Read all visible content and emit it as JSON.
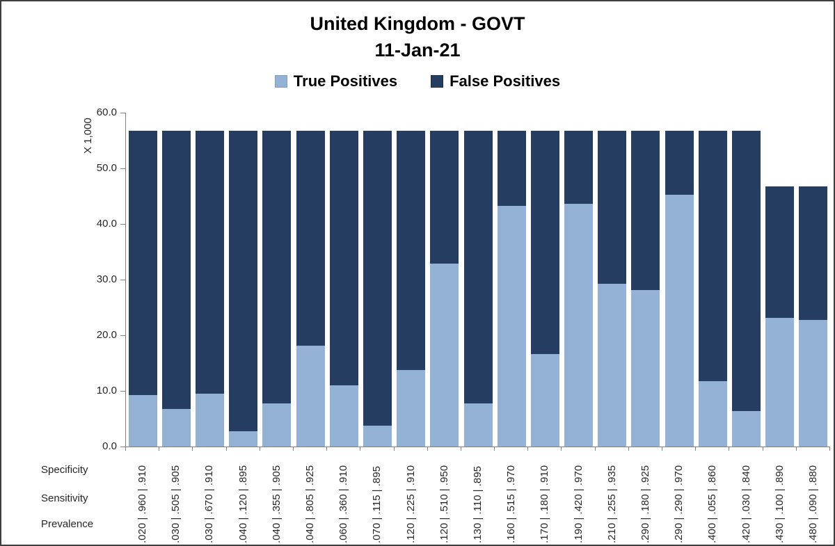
{
  "window": {
    "background": "#ffffff",
    "border_color": "#3f3f3f"
  },
  "chart_data": {
    "type": "bar",
    "stacked": true,
    "grid": false,
    "legend_position": "top",
    "title": "United Kingdom - GOVT",
    "subtitle": "11-Jan-21",
    "y_axis": {
      "unit_label": "X 1,000",
      "min": 0,
      "max": 60,
      "tick_step": 10,
      "tick_labels": [
        "0.0",
        "10.0",
        "20.0",
        "30.0",
        "40.0",
        "50.0",
        "60.0"
      ]
    },
    "x_axis": {
      "row_labels": [
        "Specificity",
        "Sensitivity",
        "Prevalence"
      ],
      "category_format": "Prevalence | Sensitivity | Specificity"
    },
    "categories": [
      ".020 | .960 | .910",
      ".030 | .505 | .905",
      ".030 | .670 | .910",
      ".040 | .120 | .895",
      ".040 | .355 | .905",
      ".040 | .805 | .925",
      ".060 | .360 | .910",
      ".070 | .115 | .895",
      ".120 | .225 | .910",
      ".120 | .510 | .950",
      ".130 | .110 | .895",
      ".160 | .515 | .970",
      ".170 | .180 | .910",
      ".190 | .420 | .970",
      ".210 | .255 | .935",
      ".290 | .180 | .925",
      ".290 | .290 | .970",
      ".400 | .055 | .860",
      ".420 | .030 | .840",
      ".430 | .100 | .890",
      ".480 | .090 | .880"
    ],
    "prevalence": [
      0.02,
      0.03,
      0.03,
      0.04,
      0.04,
      0.04,
      0.06,
      0.07,
      0.12,
      0.12,
      0.13,
      0.16,
      0.17,
      0.19,
      0.21,
      0.29,
      0.29,
      0.4,
      0.42,
      0.43,
      0.48
    ],
    "sensitivity": [
      0.96,
      0.505,
      0.67,
      0.12,
      0.355,
      0.805,
      0.36,
      0.115,
      0.225,
      0.51,
      0.11,
      0.515,
      0.18,
      0.42,
      0.255,
      0.18,
      0.29,
      0.055,
      0.03,
      0.1,
      0.09
    ],
    "specificity": [
      0.91,
      0.905,
      0.91,
      0.895,
      0.905,
      0.925,
      0.91,
      0.895,
      0.91,
      0.95,
      0.895,
      0.97,
      0.91,
      0.97,
      0.935,
      0.925,
      0.97,
      0.86,
      0.84,
      0.89,
      0.88
    ],
    "bar_total": 56.7,
    "series": [
      {
        "name": "True Positives",
        "color": "#94B2D6",
        "values": [
          9.2,
          6.7,
          9.5,
          2.7,
          7.8,
          18.1,
          11.0,
          3.8,
          13.8,
          32.9,
          7.7,
          43.2,
          16.6,
          43.6,
          29.3,
          28.1,
          45.3,
          11.8,
          6.4,
          23.1,
          22.8
        ]
      },
      {
        "name": "False Positives",
        "color": "#243D60",
        "values": [
          47.5,
          50.0,
          47.2,
          54.0,
          48.9,
          38.6,
          45.7,
          52.9,
          42.9,
          23.8,
          49.0,
          13.5,
          40.1,
          13.1,
          27.4,
          28.6,
          11.4,
          44.9,
          50.3,
          23.6,
          23.9
        ]
      }
    ]
  }
}
